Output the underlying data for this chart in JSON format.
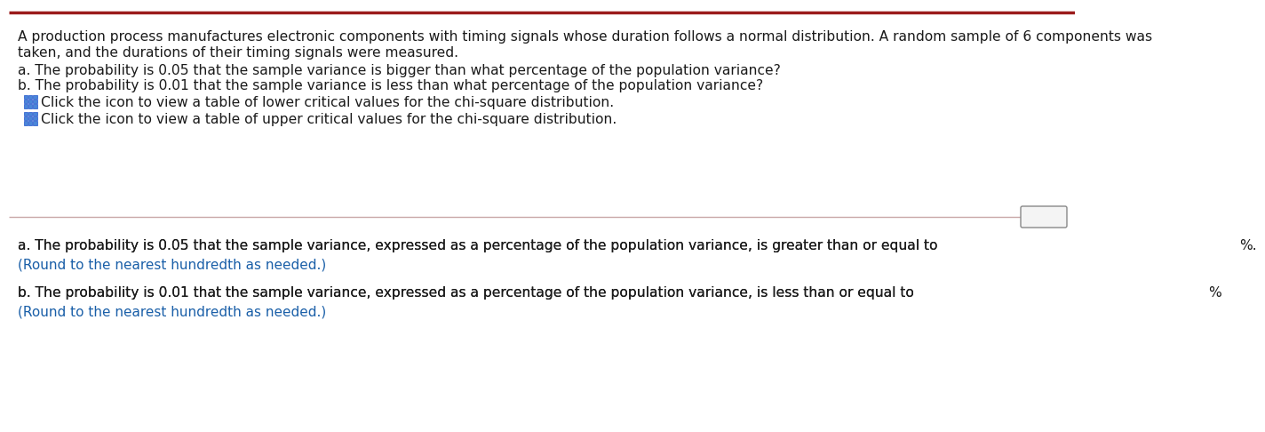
{
  "bg_color": "#ffffff",
  "top_border_color": "#9b1b1b",
  "divider_color": "#c9a8a8",
  "text_color_black": "#1a1a1a",
  "text_color_blue": "#1a5fa8",
  "icon_color_fill": "#4a86d8",
  "icon_color_border": "#2255cc",
  "paragraph1_line1": "A production process manufactures electronic components with timing signals whose duration follows a normal distribution. A random sample of 6 components was",
  "paragraph1_line2": "taken, and the durations of their timing signals were measured.",
  "question_a": "a. The probability is 0.05 that the sample variance is bigger than what percentage of the population variance?",
  "question_b": "b. The probability is 0.01 that the sample variance is less than what percentage of the population variance?",
  "click_lower": "Click the icon to view a table of lower critical values for the chi-square distribution.",
  "click_upper": "Click the icon to view a table of upper critical values for the chi-square distribution.",
  "dots_label": "...",
  "answer_a_prefix": "a. The probability is 0.05 that the sample variance, expressed as a percentage of the population variance, is greater than or equal to",
  "answer_a_suffix": "%.",
  "answer_a_note": "(Round to the nearest hundredth as needed.)",
  "answer_b_prefix": "b. The probability is 0.01 that the sample variance, expressed as a percentage of the population variance, is less than or equal to",
  "answer_b_suffix": "%",
  "answer_b_note": "(Round to the nearest hundredth as needed.)",
  "font_size_main": 11.2,
  "font_size_small": 11.0,
  "font_size_icon": 10.5
}
